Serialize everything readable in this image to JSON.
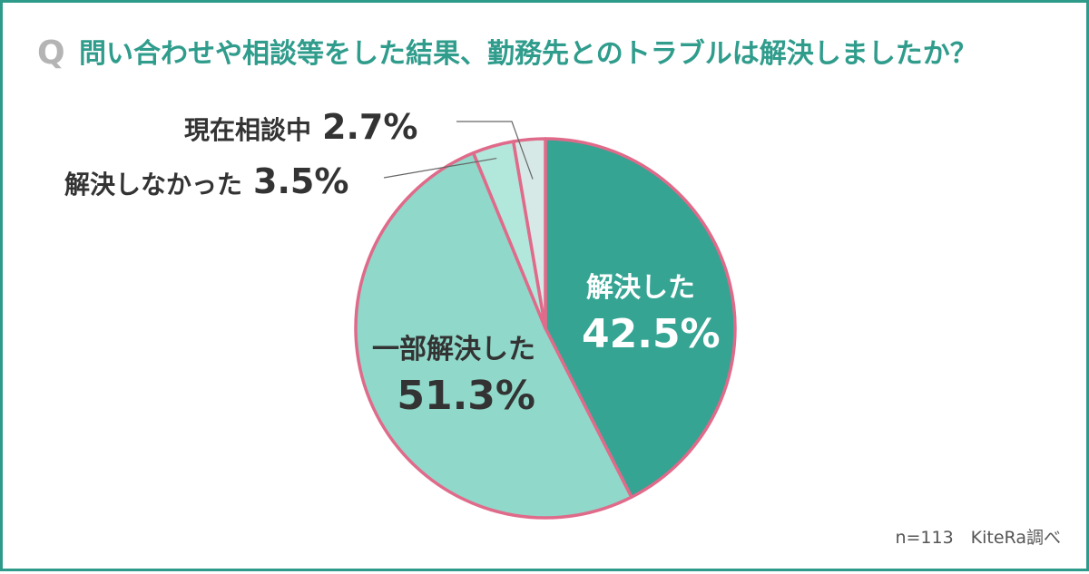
{
  "header": {
    "q_mark": "Q",
    "question": "問い合わせや相談等をした結果、勤務先とのトラブルは解決しましたか？"
  },
  "chart_data": {
    "type": "pie",
    "slices": [
      {
        "label": "解決した",
        "value": 42.5,
        "display": "42.5%",
        "color": "#35a493"
      },
      {
        "label": "一部解決した",
        "value": 51.3,
        "display": "51.3%",
        "color": "#90d9ca"
      },
      {
        "label": "解決しなかった",
        "value": 3.5,
        "display": "3.5%",
        "color": "#b2e7dc"
      },
      {
        "label": "現在相談中",
        "value": 2.7,
        "display": "2.7%",
        "color": "#d6e9e6"
      }
    ],
    "start_angle": "12 o'clock",
    "direction": "clockwise",
    "border_color": "#e06a8a"
  },
  "footnote": "n=113　KiteRa調べ"
}
